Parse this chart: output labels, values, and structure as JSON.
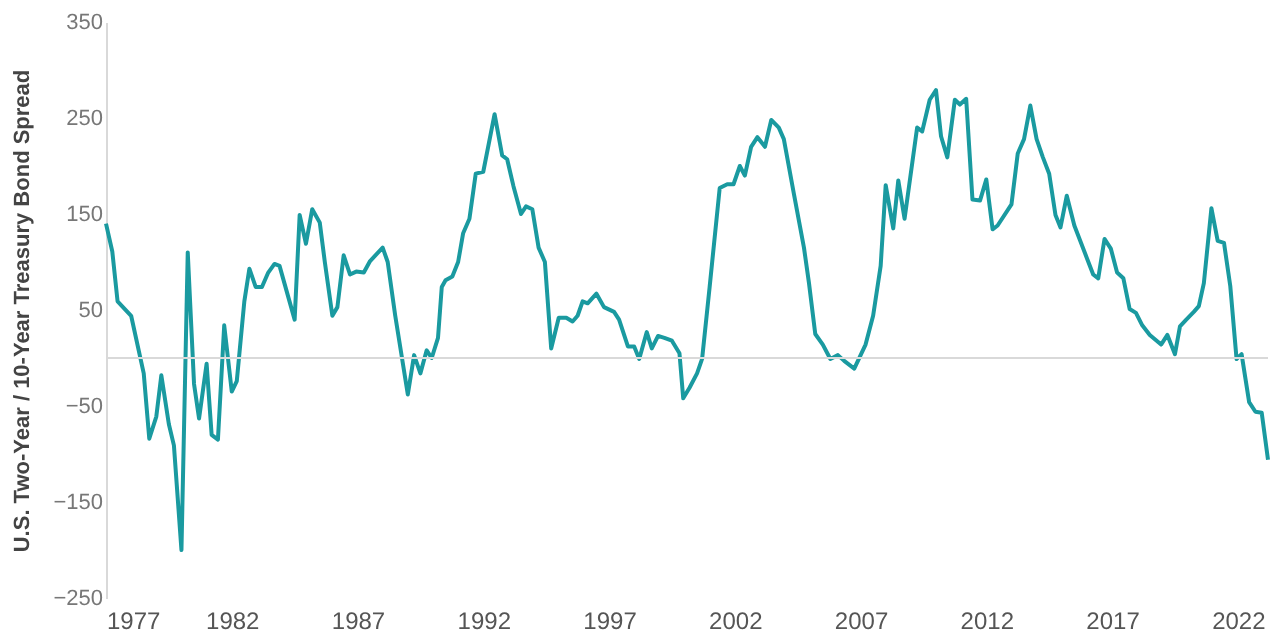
{
  "chart_data": {
    "type": "line",
    "ylabel": "U.S. Two-Year / 10-Year Treasury Bond Spread",
    "x": [
      1977.0,
      1977.25,
      1977.46,
      1978.0,
      1978.5,
      1978.72,
      1979.0,
      1979.2,
      1979.5,
      1979.7,
      1980.0,
      1980.25,
      1980.5,
      1980.7,
      1981.0,
      1981.2,
      1981.45,
      1981.7,
      1982.0,
      1982.2,
      1982.5,
      1982.7,
      1982.95,
      1983.2,
      1983.45,
      1983.7,
      1983.9,
      1984.5,
      1984.7,
      1984.95,
      1985.2,
      1985.5,
      1985.7,
      1986.0,
      1986.2,
      1986.45,
      1986.7,
      1986.95,
      1987.25,
      1987.5,
      1988.0,
      1988.2,
      1988.5,
      1989.0,
      1989.25,
      1989.5,
      1989.75,
      1989.95,
      1990.2,
      1990.35,
      1990.5,
      1990.77,
      1991.0,
      1991.2,
      1991.45,
      1991.7,
      1992.0,
      1992.45,
      1992.75,
      1992.95,
      1993.2,
      1993.5,
      1993.7,
      1993.95,
      1994.2,
      1994.45,
      1994.7,
      1995.0,
      1995.3,
      1995.55,
      1995.75,
      1995.95,
      1996.15,
      1996.5,
      1996.8,
      1997.2,
      1997.4,
      1997.75,
      1998.0,
      1998.2,
      1998.5,
      1998.7,
      1998.95,
      1999.2,
      1999.5,
      1999.8,
      1999.95,
      2000.2,
      2000.5,
      2000.7,
      2001.0,
      2001.4,
      2001.7,
      2001.95,
      2002.2,
      2002.4,
      2002.65,
      2002.9,
      2003.2,
      2003.45,
      2003.75,
      2003.95,
      2004.35,
      2004.75,
      2004.95,
      2005.2,
      2005.5,
      2005.8,
      2006.1,
      2006.35,
      2006.75,
      2007.2,
      2007.5,
      2007.8,
      2008.0,
      2008.3,
      2008.5,
      2008.75,
      2009.25,
      2009.45,
      2009.75,
      2010.0,
      2010.2,
      2010.45,
      2010.75,
      2010.95,
      2011.2,
      2011.45,
      2011.75,
      2012.0,
      2012.25,
      2012.45,
      2013.0,
      2013.25,
      2013.5,
      2013.75,
      2014.0,
      2014.25,
      2014.5,
      2014.75,
      2014.95,
      2015.2,
      2015.5,
      2016.0,
      2016.25,
      2016.45,
      2016.7,
      2016.95,
      2017.2,
      2017.45,
      2017.7,
      2017.95,
      2018.2,
      2018.5,
      2018.95,
      2019.2,
      2019.5,
      2019.7,
      2019.95,
      2020.25,
      2020.45,
      2020.65,
      2020.95,
      2021.2,
      2021.45,
      2021.7,
      2021.95,
      2022.15,
      2022.45,
      2022.7,
      2022.95,
      2023.2
    ],
    "series": [
      {
        "color": "#1a9aa0",
        "values": [
          140,
          111,
          59,
          44,
          -16,
          -84,
          -61,
          -18,
          -69,
          -91,
          -200,
          110,
          -27,
          -63,
          -6,
          -80,
          -85,
          34,
          -35,
          -24,
          59,
          93,
          74,
          74,
          89,
          98,
          96,
          40,
          149,
          119,
          155,
          141,
          100,
          44,
          53,
          107,
          87,
          90,
          89,
          101,
          115,
          100,
          44,
          -38,
          3,
          -16,
          8,
          0,
          21,
          74,
          81,
          85,
          100,
          130,
          145,
          192,
          194,
          254,
          211,
          207,
          179,
          150,
          158,
          155,
          115,
          100,
          10,
          42,
          42,
          38,
          44,
          59,
          57,
          67,
          53,
          48,
          40,
          12,
          12,
          -1,
          27,
          10,
          23,
          21,
          18,
          5,
          -42,
          -31,
          -16,
          -1,
          74,
          177,
          181,
          181,
          200,
          190,
          220,
          230,
          220,
          248,
          240,
          228,
          171,
          115,
          78,
          25,
          14,
          -1,
          3,
          -3,
          -11,
          14,
          44,
          96,
          180,
          135,
          185,
          145,
          240,
          236,
          269,
          279,
          231,
          209,
          269,
          264,
          270,
          165,
          164,
          186,
          134,
          138,
          160,
          213,
          228,
          263,
          228,
          209,
          192,
          149,
          136,
          169,
          138,
          104,
          87,
          83,
          124,
          114,
          89,
          83,
          51,
          47,
          34,
          24,
          14,
          24,
          4,
          33,
          40,
          48,
          54,
          78,
          156,
          122,
          120,
          75,
          -1,
          4,
          -46,
          -56,
          -57,
          -106
        ]
      }
    ],
    "xlim": [
      1977,
      2023.2
    ],
    "xticks": [
      1977,
      1982,
      1987,
      1992,
      1997,
      2002,
      2007,
      2012,
      2017,
      2022
    ],
    "ylim": [
      -250,
      350
    ],
    "yticks": [
      -250,
      -150,
      -50,
      50,
      150,
      250,
      350
    ],
    "ref_lines": [
      {
        "axis": "y",
        "value": 0,
        "color": "#d9d9d9"
      }
    ],
    "grid": false,
    "line_style": "solid",
    "marker": "none"
  }
}
